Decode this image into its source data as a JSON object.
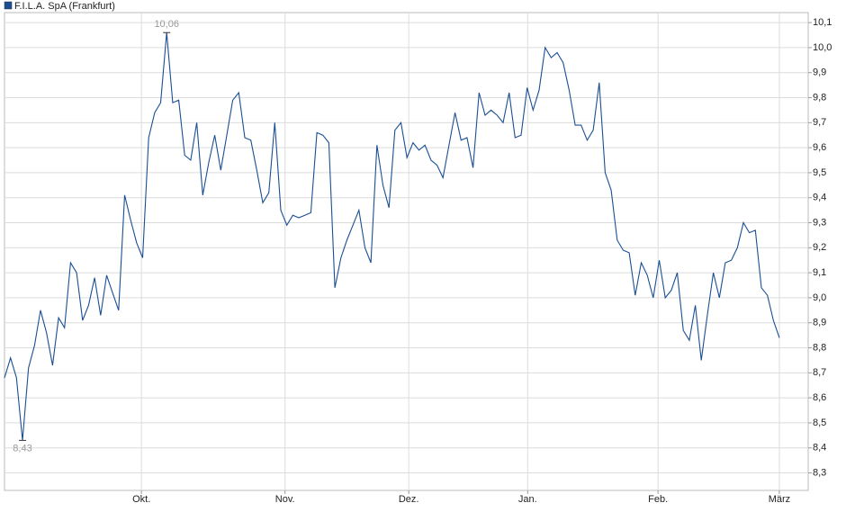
{
  "chart_data": {
    "type": "line",
    "series": [
      {
        "name": "F.I.L.A. SpA (Frankfurt)",
        "color": "#1a4f93",
        "values": [
          8.68,
          8.76,
          8.68,
          8.43,
          8.72,
          8.81,
          8.95,
          8.86,
          8.73,
          8.92,
          8.88,
          9.14,
          9.1,
          8.91,
          8.97,
          9.08,
          8.93,
          9.09,
          9.02,
          8.95,
          9.41,
          9.31,
          9.22,
          9.16,
          9.64,
          9.74,
          9.78,
          10.06,
          9.78,
          9.79,
          9.57,
          9.55,
          9.7,
          9.41,
          9.54,
          9.65,
          9.51,
          9.65,
          9.79,
          9.82,
          9.64,
          9.63,
          9.51,
          9.38,
          9.42,
          9.7,
          9.35,
          9.29,
          9.33,
          9.32,
          9.33,
          9.34,
          9.66,
          9.65,
          9.62,
          9.04,
          9.16,
          9.23,
          9.29,
          9.35,
          9.2,
          9.14,
          9.61,
          9.45,
          9.36,
          9.67,
          9.7,
          9.56,
          9.62,
          9.59,
          9.61,
          9.55,
          9.53,
          9.48,
          9.61,
          9.74,
          9.63,
          9.64,
          9.52,
          9.82,
          9.73,
          9.75,
          9.73,
          9.7,
          9.82,
          9.64,
          9.65,
          9.84,
          9.75,
          9.83,
          10.0,
          9.96,
          9.98,
          9.94,
          9.83,
          9.69,
          9.69,
          9.63,
          9.67,
          9.86,
          9.5,
          9.43,
          9.23,
          9.19,
          9.18,
          9.01,
          9.14,
          9.09,
          9.0,
          9.15,
          9.0,
          9.03,
          9.1,
          8.87,
          8.83,
          8.97,
          8.75,
          8.93,
          9.1,
          9.0,
          9.14,
          9.15,
          9.2,
          9.3,
          9.26,
          9.27,
          9.04,
          9.01,
          8.91,
          8.84
        ]
      }
    ],
    "annotations": [
      {
        "value": 10.06,
        "label": "10,06"
      },
      {
        "value": 8.43,
        "label": "8,43"
      }
    ],
    "xlim": [
      0,
      133.8
    ],
    "xticks": [
      {
        "value": 22.8,
        "label": "Okt."
      },
      {
        "value": 46.7,
        "label": "Nov."
      },
      {
        "value": 67.3,
        "label": "Dez."
      },
      {
        "value": 87.1,
        "label": "Jan."
      },
      {
        "value": 108.8,
        "label": "Feb."
      },
      {
        "value": 129,
        "label": "März"
      }
    ],
    "ylim": [
      8.23,
      10.14
    ],
    "yticks": [
      {
        "value": 8.3,
        "label": "8,3"
      },
      {
        "value": 8.4,
        "label": "8,4"
      },
      {
        "value": 8.5,
        "label": "8,5"
      },
      {
        "value": 8.6,
        "label": "8,6"
      },
      {
        "value": 8.7,
        "label": "8,7"
      },
      {
        "value": 8.8,
        "label": "8,8"
      },
      {
        "value": 8.9,
        "label": "8,9"
      },
      {
        "value": 9.0,
        "label": "9,0"
      },
      {
        "value": 9.1,
        "label": "9,1"
      },
      {
        "value": 9.2,
        "label": "9,2"
      },
      {
        "value": 9.3,
        "label": "9,3"
      },
      {
        "value": 9.4,
        "label": "9,4"
      },
      {
        "value": 9.5,
        "label": "9,5"
      },
      {
        "value": 9.6,
        "label": "9,6"
      },
      {
        "value": 9.7,
        "label": "9,7"
      },
      {
        "value": 9.8,
        "label": "9,8"
      },
      {
        "value": 9.9,
        "label": "9,9"
      },
      {
        "value": 10.0,
        "label": "10,0"
      },
      {
        "value": 10.1,
        "label": "10,1"
      }
    ],
    "grid": true
  }
}
